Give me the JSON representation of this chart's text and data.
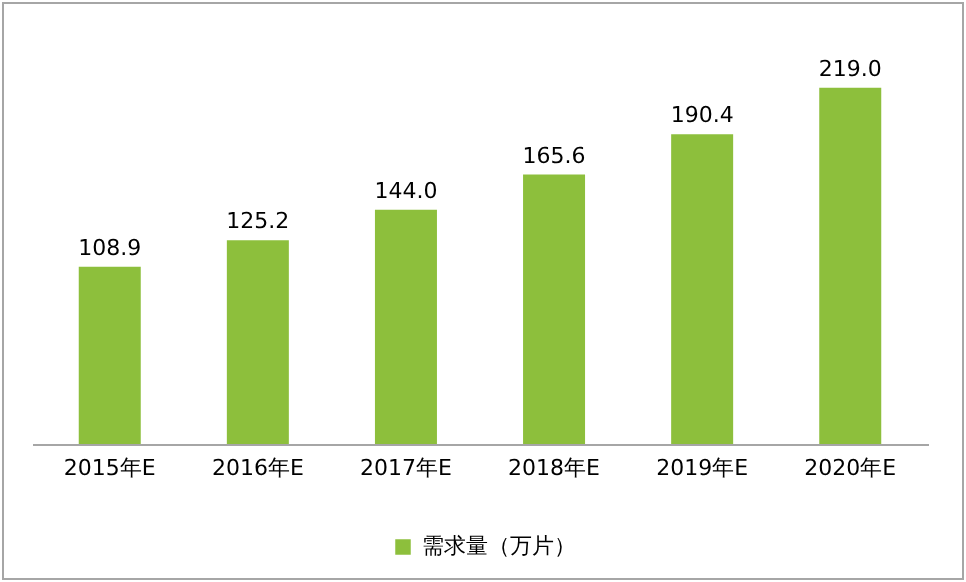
{
  "chart_data": {
    "type": "bar",
    "categories": [
      "2015年E",
      "2016年E",
      "2017年E",
      "2018年E",
      "2019年E",
      "2020年E"
    ],
    "series": [
      {
        "name": "需求量（万片）",
        "color": "#8dbf3c",
        "values": [
          108.9,
          125.2,
          144.0,
          165.6,
          190.4,
          219.0
        ],
        "value_labels": [
          "108.9",
          "125.2",
          "144.0",
          "165.6",
          "190.4",
          "219.0"
        ]
      }
    ],
    "legend": "bottom",
    "grid": false
  }
}
